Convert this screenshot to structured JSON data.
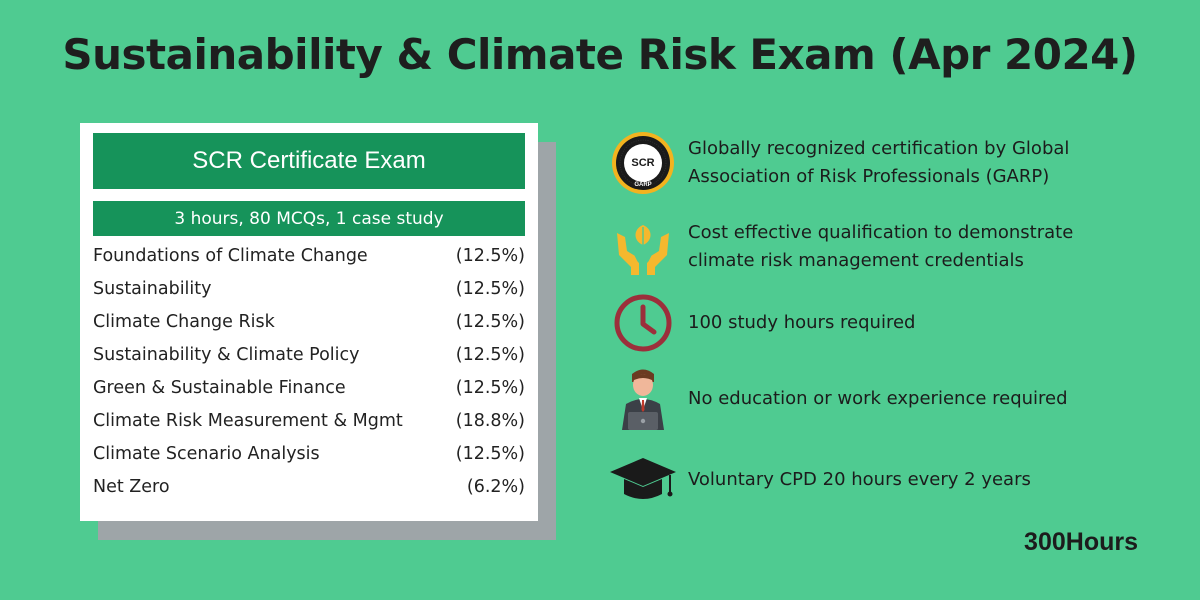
{
  "title": "Sustainability & Climate Risk Exam (Apr 2024)",
  "card": {
    "header": "SCR Certificate Exam",
    "subheader": "3 hours, 80 MCQs, 1 case study",
    "topics": [
      {
        "name": "Foundations of Climate Change",
        "pct": "(12.5%)"
      },
      {
        "name": "Sustainability",
        "pct": "(12.5%)"
      },
      {
        "name": "Climate Change Risk",
        "pct": "(12.5%)"
      },
      {
        "name": "Sustainability & Climate Policy",
        "pct": "(12.5%)"
      },
      {
        "name": "Green & Sustainable Finance",
        "pct": "(12.5%)"
      },
      {
        "name": "Climate Risk Measurement & Mgmt",
        "pct": "(18.8%)"
      },
      {
        "name": "Climate Scenario Analysis",
        "pct": "(12.5%)"
      },
      {
        "name": "Net Zero",
        "pct": "(6.2%)"
      }
    ]
  },
  "badge": {
    "text_top": "SCR",
    "text_bottom": "GARP"
  },
  "features": [
    {
      "icon": "scr-badge-icon",
      "line1": "Globally recognized certification by Global",
      "line2": "Association of Risk Professionals (GARP)"
    },
    {
      "icon": "hands-leaf-icon",
      "line1": "Cost effective qualification to demonstrate",
      "line2": "climate risk management credentials"
    },
    {
      "icon": "clock-icon",
      "line1": "100 study hours required",
      "line2": ""
    },
    {
      "icon": "person-laptop-icon",
      "line1": "No education or work experience required",
      "line2": ""
    },
    {
      "icon": "graduation-cap-icon",
      "line1": "Voluntary CPD 20 hours every 2 years",
      "line2": ""
    }
  ],
  "brand": "300Hours",
  "colors": {
    "background": "#4fcb91",
    "card_green": "#16935a",
    "clock_red": "#9c2f3b",
    "hands_yellow": "#f5b82e"
  }
}
